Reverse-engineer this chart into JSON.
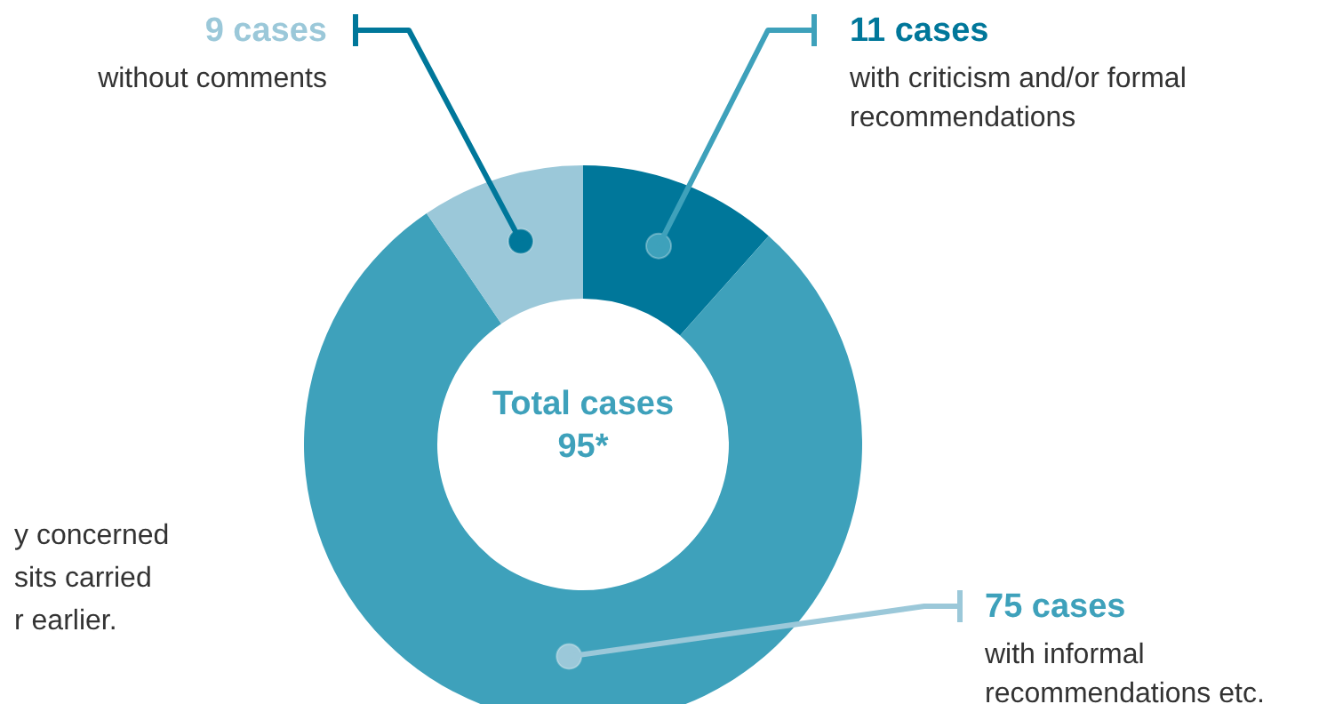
{
  "chart_data": {
    "type": "donut",
    "title": "Total cases",
    "subtitle": "95*",
    "categories": [
      "with criticism and/or formal recommendations",
      "with informal recommendations etc.",
      "without comments"
    ],
    "values": [
      11,
      75,
      9
    ],
    "value_labels": [
      "11 cases",
      "75 cases",
      "9 cases"
    ],
    "colors": [
      "#00779a",
      "#3ea1bb",
      "#9bc8d9"
    ],
    "annotations": [
      "y concerned\nsits carried\nr earlier."
    ]
  }
}
